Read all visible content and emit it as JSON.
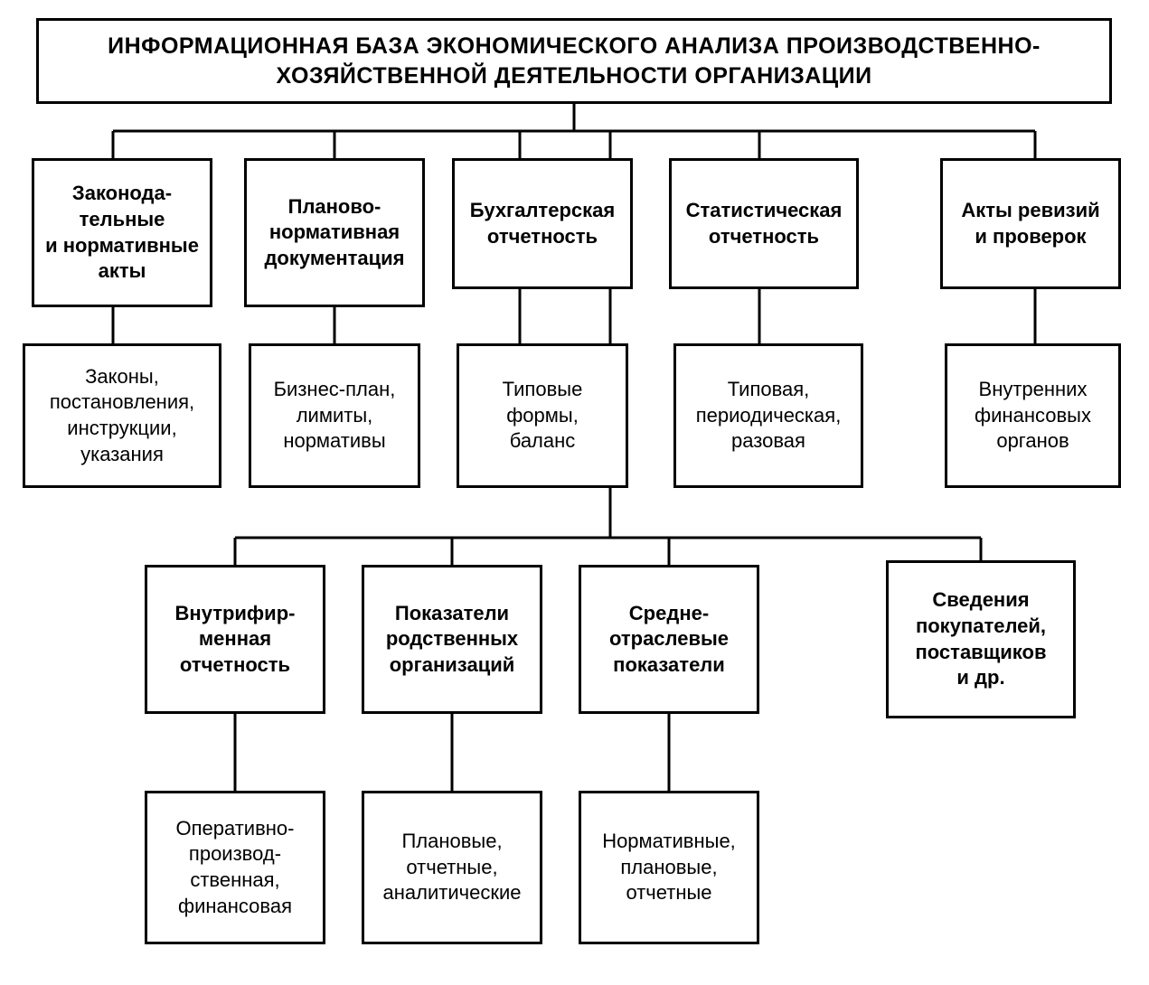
{
  "diagram": {
    "type": "tree",
    "background_color": "#ffffff",
    "border_color": "#000000",
    "border_width": 3,
    "connector_color": "#000000",
    "connector_width": 3,
    "title_fontsize": 25,
    "category_fontsize": 22,
    "sub_fontsize": 22,
    "font_weight_title": "bold",
    "font_weight_category": "bold",
    "font_weight_sub": "normal",
    "title": "ИНФОРМАЦИОННАЯ БАЗА ЭКОНОМИЧЕСКОГО АНАЛИЗА ПРОИЗВОДСТВЕННО-ХОЗЯЙСТВЕННОЙ ДЕЯТЕЛЬНОСТИ ОРГАНИЗАЦИИ",
    "row1": [
      "Законода-\nтельные\nи нормативные\nакты",
      "Планово-\nнормативная\nдокументация",
      "Бухгалтерская\nотчетность",
      "Статистическая\nотчетность",
      "Акты ревизий\nи проверок"
    ],
    "row2": [
      "Законы,\nпостановления,\nинструкции,\nуказания",
      "Бизнес-план,\nлимиты,\nнормативы",
      "Типовые\nформы,\nбаланс",
      "Типовая,\nпериодическая,\nразовая",
      "Внутренних\nфинансовых\nорганов"
    ],
    "row3": [
      "Внутрифир-\nменная\nотчетность",
      "Показатели\nродственных\nорганизаций",
      "Средне-\nотраслевые\nпоказатели",
      "Сведения\nпокупателей,\nпоставщиков\nи др."
    ],
    "row4": [
      "Оперативно-\nпроизвод-\nственная,\nфинансовая",
      "Плановые,\nотчетные,\nаналитические",
      "Нормативные,\nплановые,\nотчетные"
    ]
  }
}
